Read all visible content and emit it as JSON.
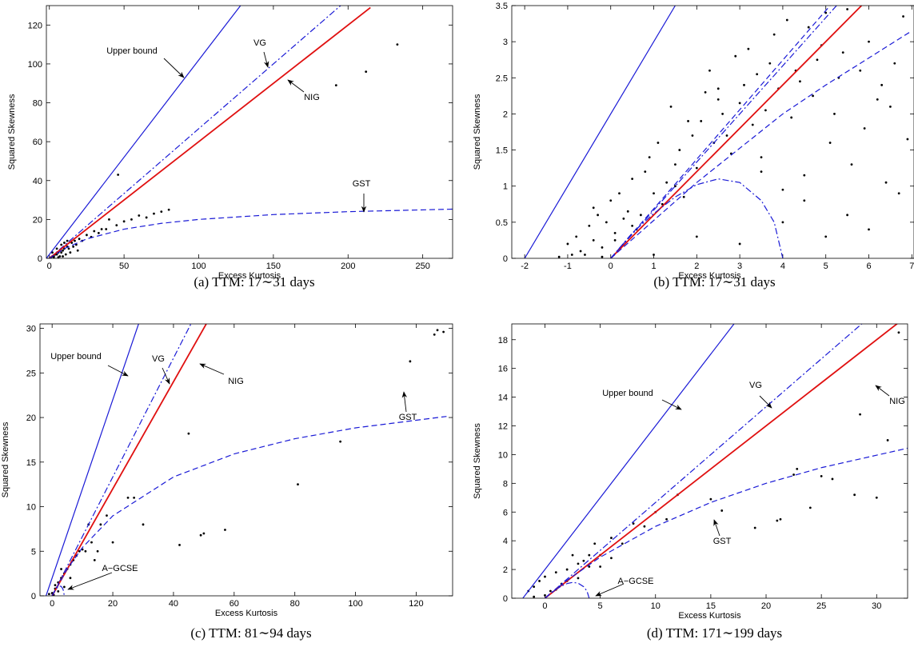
{
  "chart_data": [
    {
      "type": "scatter",
      "caption": "(a)  TTM: 17∼31 days",
      "xlabel": "Excess Kurtosis",
      "ylabel": "Squared Skewness",
      "xlim": [
        -2,
        270
      ],
      "ylim": [
        0,
        130
      ],
      "xticks": [
        0,
        50,
        100,
        150,
        200,
        250
      ],
      "yticks": [
        0,
        20,
        40,
        60,
        80,
        100,
        120
      ],
      "series": [
        {
          "kind": "points",
          "color": "#000000",
          "x": [
            1,
            2,
            4,
            6,
            7,
            9,
            11,
            13,
            14,
            16,
            17,
            19,
            2,
            5,
            8,
            10,
            12,
            3,
            6,
            9,
            3,
            5,
            8,
            10,
            12,
            15,
            18,
            20,
            22,
            25,
            28,
            30,
            33,
            35,
            38,
            40,
            45,
            46,
            50,
            55,
            60,
            65,
            70,
            75,
            80,
            192,
            212,
            233
          ],
          "values": [
            0.5,
            1,
            2,
            3,
            1,
            4,
            2,
            5,
            3,
            6,
            9,
            4,
            3,
            5,
            7,
            8,
            9,
            0.2,
            0.5,
            1,
            1,
            2,
            3,
            5,
            6,
            8,
            7,
            10,
            9,
            12,
            11,
            14,
            13,
            15,
            15,
            20,
            17,
            43,
            19,
            20,
            22,
            21,
            23,
            24,
            25,
            89,
            96,
            110
          ]
        },
        {
          "name": "Upper bound",
          "kind": "line",
          "style": "solid",
          "color": "#1a1ad6",
          "x": [
            -2,
            128
          ],
          "values": [
            0,
            130
          ]
        },
        {
          "name": "VG",
          "kind": "line",
          "style": "dashdot",
          "color": "#1a1ad6",
          "x": [
            0,
            195
          ],
          "values": [
            0,
            130
          ]
        },
        {
          "name": "NIG",
          "kind": "line",
          "style": "solid",
          "color": "#e01010",
          "x": [
            0,
            215
          ],
          "values": [
            0,
            129
          ]
        },
        {
          "name": "GST",
          "kind": "line",
          "style": "dashed",
          "color": "#1a1ad6",
          "x": [
            0,
            10,
            25,
            50,
            75,
            100,
            150,
            200,
            270
          ],
          "values": [
            0,
            5,
            10,
            15,
            18,
            20,
            22.5,
            24,
            25.3
          ]
        }
      ]
    },
    {
      "type": "scatter",
      "caption": "(b)  TTM: 17∼31 days",
      "xlabel": "Excess Kurtosis",
      "ylabel": "Squared Skewness",
      "xlim": [
        -2.3,
        7.05
      ],
      "ylim": [
        0,
        3.5
      ],
      "xticks": [
        -2,
        -1,
        0,
        1,
        2,
        3,
        4,
        5,
        6,
        7
      ],
      "yticks": [
        0,
        0.5,
        1,
        1.5,
        2,
        2.5,
        3,
        3.5
      ],
      "series": [
        {
          "kind": "points",
          "color": "#000000",
          "x": [
            -1.2,
            -1,
            -0.9,
            -0.8,
            -0.7,
            -0.5,
            -0.4,
            -0.3,
            -0.2,
            -0.1,
            0,
            0.1,
            0.2,
            0.3,
            0.5,
            -0.6,
            -0.4,
            -0.2,
            0.1,
            0.4,
            0.6,
            0.8,
            1,
            1.2,
            0.9,
            1.1,
            1.3,
            1.5,
            1.7,
            1.9,
            0.7,
            1.4,
            1.6,
            1.8,
            2,
            2.2,
            2.4,
            2.6,
            2.8,
            2.1,
            2.3,
            2.5,
            2.7,
            2.9,
            3.1,
            3.3,
            3,
            3.2,
            3.4,
            3.6,
            3.8,
            3.5,
            3.7,
            3.9,
            4.1,
            4.3,
            4,
            4.2,
            4.4,
            4.6,
            4.8,
            4.5,
            4.7,
            4.9,
            5.1,
            5.3,
            5,
            5.2,
            5.4,
            5.6,
            5.8,
            6,
            6.2,
            6.4,
            6.6,
            6.8,
            5.5,
            5.9,
            6.3,
            6.7,
            6.9,
            1,
            2,
            3,
            4,
            5,
            6,
            0.5,
            1.5,
            2.5,
            3.5,
            4.5,
            5.5,
            6.5
          ],
          "values": [
            0.02,
            0.2,
            0.05,
            0.3,
            0.1,
            0.45,
            0.25,
            0.6,
            0.15,
            0.5,
            0.8,
            0.35,
            0.9,
            0.55,
            1.1,
            0.05,
            0.7,
            0.02,
            0.25,
            0.65,
            0.4,
            1.2,
            0.9,
            0.75,
            1.4,
            1.6,
            1.05,
            1.3,
            0.85,
            1.7,
            0.6,
            2.1,
            1.5,
            1.9,
            1.25,
            2.3,
            1.6,
            2.0,
            1.45,
            1.9,
            2.6,
            2.2,
            1.7,
            2.8,
            2.4,
            1.85,
            2.15,
            2.9,
            2.55,
            2.05,
            3.1,
            1.4,
            2.7,
            2.35,
            3.3,
            2.6,
            0.95,
            1.95,
            2.45,
            3.2,
            2.75,
            1.15,
            2.25,
            2.95,
            1.6,
            2.5,
            3.4,
            2.0,
            2.85,
            1.3,
            2.6,
            3.0,
            2.2,
            1.05,
            2.7,
            3.35,
            0.6,
            1.8,
            2.4,
            0.9,
            1.65,
            0.05,
            0.3,
            0.2,
            0.5,
            0.3,
            0.4,
            0.45,
            1.0,
            2.35,
            1.2,
            0.8,
            3.45,
            2.1
          ]
        },
        {
          "kind": "line",
          "style": "solid",
          "color": "#1a1ad6",
          "x": [
            -2,
            1.5
          ],
          "values": [
            0,
            3.5
          ]
        },
        {
          "kind": "line",
          "style": "dashdot",
          "color": "#1a1ad6",
          "x": [
            0,
            5.25
          ],
          "values": [
            0,
            3.5
          ]
        },
        {
          "kind": "line",
          "style": "solid",
          "color": "#e01010",
          "x": [
            0,
            5.83
          ],
          "values": [
            0,
            3.5
          ]
        },
        {
          "kind": "line",
          "style": "dashed",
          "color": "#1a1ad6",
          "x": [
            0,
            5.1
          ],
          "values": [
            0,
            3.5
          ]
        },
        {
          "kind": "line",
          "style": "dashed",
          "color": "#1a1ad6",
          "x": [
            0,
            2,
            4,
            5,
            7
          ],
          "values": [
            0,
            1.05,
            2.0,
            2.4,
            3.15
          ]
        },
        {
          "kind": "line",
          "style": "dashdot",
          "color": "#1a1ad6",
          "x": [
            0,
            0.5,
            1,
            1.5,
            2,
            2.5,
            3,
            3.5,
            3.8,
            4
          ],
          "values": [
            0,
            0.35,
            0.62,
            0.85,
            1.02,
            1.1,
            1.05,
            0.8,
            0.5,
            0
          ]
        }
      ]
    },
    {
      "type": "scatter",
      "caption": "(c)  TTM: 81∼94 days",
      "xlabel": "Excess Kurtosis",
      "ylabel": "Squared Skewness",
      "xlim": [
        -4,
        132
      ],
      "ylim": [
        0,
        30.5
      ],
      "xticks": [
        0,
        20,
        40,
        60,
        80,
        100,
        120
      ],
      "yticks": [
        0,
        5,
        10,
        15,
        20,
        25,
        30
      ],
      "series": [
        {
          "kind": "points",
          "color": "#000000",
          "x": [
            0,
            1,
            2,
            3,
            4,
            5,
            6,
            7,
            8,
            9,
            10,
            11,
            12,
            13,
            14,
            15,
            16,
            18,
            20,
            25,
            27,
            30,
            42,
            45,
            49,
            50,
            57,
            81,
            95,
            118,
            126,
            127,
            129,
            1,
            2,
            3,
            -1,
            0.5,
            4,
            6
          ],
          "values": [
            0.3,
            0.8,
            1.5,
            2,
            2.5,
            3,
            3.5,
            4,
            4.5,
            5,
            5.2,
            5,
            8,
            6,
            4,
            5,
            8,
            9,
            6,
            11,
            11,
            8,
            5.7,
            18.2,
            6.8,
            7,
            7.4,
            12.5,
            17.3,
            26.3,
            29.3,
            29.8,
            29.6,
            1.2,
            0.5,
            3,
            0.2,
            0.1,
            1,
            2
          ]
        },
        {
          "name": "Upper bound",
          "kind": "line",
          "style": "solid",
          "color": "#1a1ad6",
          "x": [
            -2,
            28.5
          ],
          "values": [
            0,
            30.5
          ]
        },
        {
          "name": "VG",
          "kind": "line",
          "style": "dashdot",
          "color": "#1a1ad6",
          "x": [
            0,
            45.75
          ],
          "values": [
            0,
            30.5
          ]
        },
        {
          "name": "NIG",
          "kind": "line",
          "style": "solid",
          "color": "#e01010",
          "x": [
            0,
            50.8
          ],
          "values": [
            0,
            30.5
          ]
        },
        {
          "name": "GST",
          "kind": "line",
          "style": "dashed",
          "color": "#1a1ad6",
          "x": [
            0,
            5,
            10,
            20,
            40,
            60,
            80,
            100,
            130
          ],
          "values": [
            0,
            3.02,
            5.42,
            8.97,
            13.33,
            15.92,
            17.62,
            18.84,
            20.12
          ]
        },
        {
          "name": "A−GCSE",
          "kind": "line",
          "style": "dashdot",
          "color": "#1a1ad6",
          "x": [
            0,
            0.5,
            1,
            1.5,
            2,
            2.5,
            3,
            3.5,
            3.8,
            4
          ],
          "values": [
            0,
            0.35,
            0.62,
            0.85,
            1.02,
            1.1,
            1.05,
            0.8,
            0.5,
            0
          ]
        }
      ]
    },
    {
      "type": "scatter",
      "caption": "(d)  TTM: 171∼199 days",
      "xlabel": "Excess Kurtosis",
      "ylabel": "Squared Skewness",
      "xlim": [
        -3,
        32.8
      ],
      "ylim": [
        0,
        19.1
      ],
      "xticks": [
        0,
        5,
        10,
        15,
        20,
        25,
        30
      ],
      "yticks": [
        0,
        2,
        4,
        6,
        8,
        10,
        12,
        14,
        16,
        18
      ],
      "series": [
        {
          "kind": "points",
          "color": "#000000",
          "x": [
            -1.5,
            -1,
            -0.5,
            0,
            0.5,
            1,
            1.5,
            2,
            2.5,
            3,
            3.5,
            4,
            4.5,
            5,
            6,
            7,
            8,
            9,
            10,
            11,
            12,
            15,
            16,
            19,
            21,
            21.3,
            22.5,
            22.8,
            24,
            25,
            26,
            28,
            28.5,
            30,
            31,
            32,
            33,
            1,
            2,
            3,
            4,
            5,
            6,
            0,
            -1
          ],
          "values": [
            0.5,
            0.8,
            1.2,
            1.5,
            0.5,
            1.8,
            1,
            2,
            3,
            2.4,
            2.6,
            3,
            3.8,
            3,
            4.2,
            3.8,
            5.2,
            5,
            6,
            5.5,
            7.2,
            6.9,
            6.1,
            4.9,
            5.4,
            5.5,
            8.6,
            9,
            6.3,
            8.5,
            8.3,
            7.2,
            12.8,
            7,
            11,
            18.5,
            18.8,
            0.6,
            1.2,
            1.4,
            2.2,
            2.2,
            2.8,
            0.2,
            0.1
          ]
        },
        {
          "name": "Upper bound",
          "kind": "line",
          "style": "solid",
          "color": "#1a1ad6",
          "x": [
            -2,
            17.5
          ],
          "values": [
            0,
            19.5
          ]
        },
        {
          "name": "VG",
          "kind": "line",
          "style": "dashdot",
          "color": "#1a1ad6",
          "x": [
            0,
            29.25
          ],
          "values": [
            0,
            19.5
          ]
        },
        {
          "name": "NIG",
          "kind": "line",
          "style": "solid",
          "color": "#e01010",
          "x": [
            0,
            32.5
          ],
          "values": [
            0,
            19.5
          ]
        },
        {
          "name": "GST",
          "kind": "line",
          "style": "dashed",
          "color": "#1a1ad6",
          "x": [
            0,
            2,
            5,
            10,
            15,
            20,
            25,
            33
          ],
          "values": [
            0,
            1.25,
            2.86,
            5,
            6.67,
            8,
            9.09,
            10.48
          ]
        },
        {
          "name": "A−GCSE",
          "kind": "line",
          "style": "dashdot",
          "color": "#1a1ad6",
          "x": [
            0,
            0.5,
            1,
            1.5,
            2,
            2.5,
            3,
            3.5,
            3.8,
            4
          ],
          "values": [
            0,
            0.35,
            0.62,
            0.85,
            1.02,
            1.1,
            1.05,
            0.8,
            0.5,
            0
          ]
        }
      ]
    }
  ]
}
